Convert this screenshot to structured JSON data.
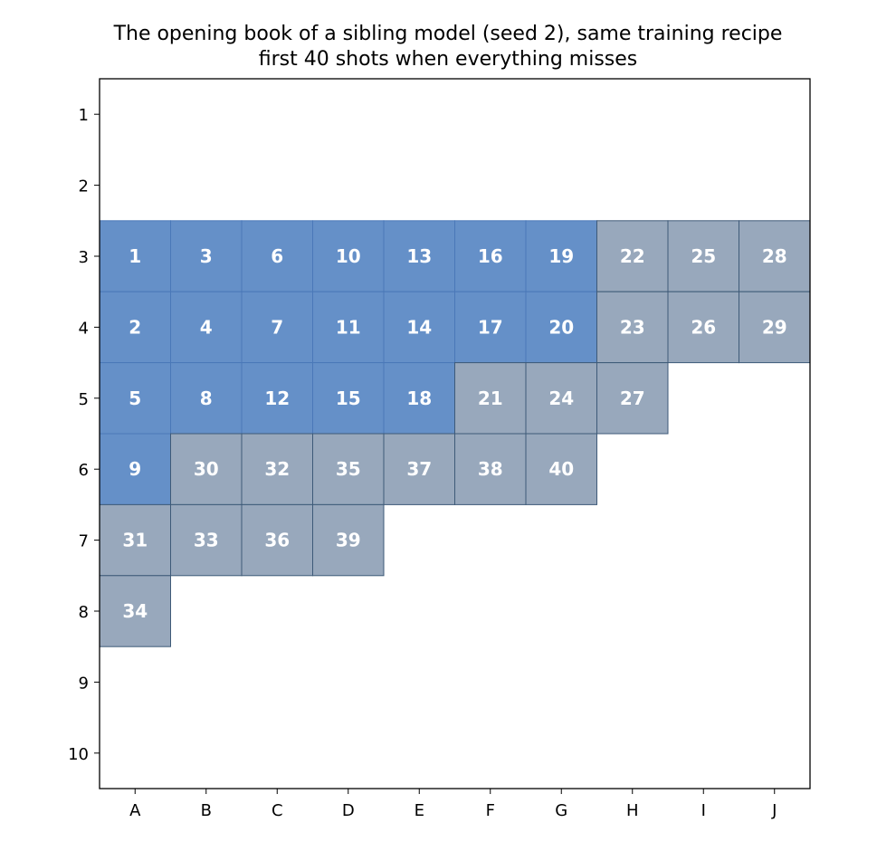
{
  "chart_data": {
    "type": "heatmap",
    "title": "The opening book of a sibling model (seed 2), same training recipe",
    "subtitle": "first 40 shots when everything misses",
    "columns": [
      "A",
      "B",
      "C",
      "D",
      "E",
      "F",
      "G",
      "H",
      "I",
      "J"
    ],
    "rows": [
      "1",
      "2",
      "3",
      "4",
      "5",
      "6",
      "7",
      "8",
      "9",
      "10"
    ],
    "grid": false,
    "colors": {
      "highlight": "#6590c8",
      "highlight_edge": "#4a78b8",
      "other": "#98a8bc",
      "other_edge": "#3e5a78"
    },
    "shots": [
      {
        "n": "1",
        "col": "A",
        "row": "3",
        "highlight": true
      },
      {
        "n": "2",
        "col": "A",
        "row": "4",
        "highlight": true
      },
      {
        "n": "3",
        "col": "B",
        "row": "3",
        "highlight": true
      },
      {
        "n": "4",
        "col": "B",
        "row": "4",
        "highlight": true
      },
      {
        "n": "5",
        "col": "A",
        "row": "5",
        "highlight": true
      },
      {
        "n": "6",
        "col": "C",
        "row": "3",
        "highlight": true
      },
      {
        "n": "7",
        "col": "C",
        "row": "4",
        "highlight": true
      },
      {
        "n": "8",
        "col": "B",
        "row": "5",
        "highlight": true
      },
      {
        "n": "9",
        "col": "A",
        "row": "6",
        "highlight": true
      },
      {
        "n": "10",
        "col": "D",
        "row": "3",
        "highlight": true
      },
      {
        "n": "11",
        "col": "D",
        "row": "4",
        "highlight": true
      },
      {
        "n": "12",
        "col": "C",
        "row": "5",
        "highlight": true
      },
      {
        "n": "13",
        "col": "E",
        "row": "3",
        "highlight": true
      },
      {
        "n": "14",
        "col": "E",
        "row": "4",
        "highlight": true
      },
      {
        "n": "15",
        "col": "D",
        "row": "5",
        "highlight": true
      },
      {
        "n": "16",
        "col": "F",
        "row": "3",
        "highlight": true
      },
      {
        "n": "17",
        "col": "F",
        "row": "4",
        "highlight": true
      },
      {
        "n": "18",
        "col": "E",
        "row": "5",
        "highlight": true
      },
      {
        "n": "19",
        "col": "G",
        "row": "3",
        "highlight": true
      },
      {
        "n": "20",
        "col": "G",
        "row": "4",
        "highlight": true
      },
      {
        "n": "21",
        "col": "F",
        "row": "5",
        "highlight": false
      },
      {
        "n": "22",
        "col": "H",
        "row": "3",
        "highlight": false
      },
      {
        "n": "23",
        "col": "H",
        "row": "4",
        "highlight": false
      },
      {
        "n": "24",
        "col": "G",
        "row": "5",
        "highlight": false
      },
      {
        "n": "25",
        "col": "I",
        "row": "3",
        "highlight": false
      },
      {
        "n": "26",
        "col": "I",
        "row": "4",
        "highlight": false
      },
      {
        "n": "27",
        "col": "H",
        "row": "5",
        "highlight": false
      },
      {
        "n": "28",
        "col": "J",
        "row": "3",
        "highlight": false
      },
      {
        "n": "29",
        "col": "J",
        "row": "4",
        "highlight": false
      },
      {
        "n": "30",
        "col": "B",
        "row": "6",
        "highlight": false
      },
      {
        "n": "31",
        "col": "A",
        "row": "7",
        "highlight": false
      },
      {
        "n": "32",
        "col": "C",
        "row": "6",
        "highlight": false
      },
      {
        "n": "33",
        "col": "B",
        "row": "7",
        "highlight": false
      },
      {
        "n": "34",
        "col": "A",
        "row": "8",
        "highlight": false
      },
      {
        "n": "35",
        "col": "D",
        "row": "6",
        "highlight": false
      },
      {
        "n": "36",
        "col": "C",
        "row": "7",
        "highlight": false
      },
      {
        "n": "37",
        "col": "E",
        "row": "6",
        "highlight": false
      },
      {
        "n": "38",
        "col": "F",
        "row": "6",
        "highlight": false
      },
      {
        "n": "39",
        "col": "D",
        "row": "7",
        "highlight": false
      },
      {
        "n": "40",
        "col": "G",
        "row": "6",
        "highlight": false
      }
    ]
  }
}
